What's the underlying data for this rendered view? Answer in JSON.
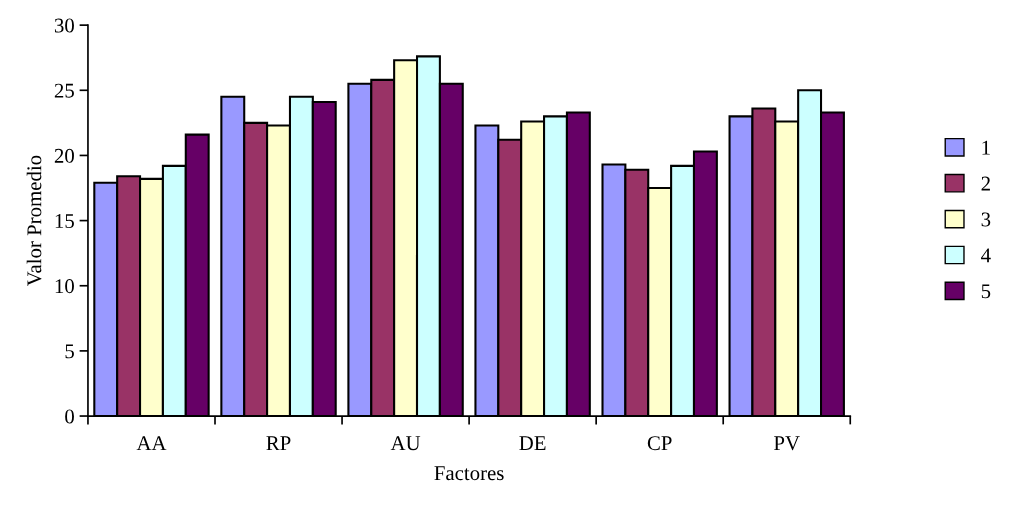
{
  "chart_data": {
    "type": "bar",
    "xlabel": "Factores",
    "ylabel": "Valor Promedio",
    "categories": [
      "AA",
      "RP",
      "AU",
      "DE",
      "CP",
      "PV"
    ],
    "series": [
      {
        "name": "1",
        "color": "#9999ff",
        "values": [
          17.9,
          24.5,
          25.5,
          22.3,
          19.3,
          23.0
        ]
      },
      {
        "name": "2",
        "color": "#993366",
        "values": [
          18.4,
          22.5,
          25.8,
          21.2,
          18.9,
          23.6
        ]
      },
      {
        "name": "3",
        "color": "#ffffcc",
        "values": [
          18.2,
          22.3,
          27.3,
          22.6,
          17.5,
          22.6
        ]
      },
      {
        "name": "4",
        "color": "#ccffff",
        "values": [
          19.2,
          24.5,
          27.6,
          23.0,
          19.2,
          25.0
        ]
      },
      {
        "name": "5",
        "color": "#660066",
        "values": [
          21.6,
          24.1,
          25.5,
          23.3,
          20.3,
          23.3
        ]
      }
    ],
    "ylim": [
      0,
      30
    ],
    "yticks": [
      0,
      5,
      10,
      15,
      20,
      25,
      30
    ],
    "grid": false,
    "legend": "right"
  }
}
